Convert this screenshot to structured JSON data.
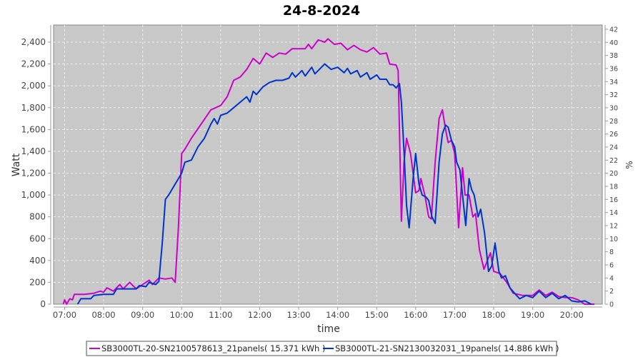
{
  "chart_data": {
    "type": "line",
    "title": "24-8-2024",
    "xlabel": "time",
    "ylabel": "Watt",
    "y2label": "%",
    "xlim": [
      "06:43",
      "20:47"
    ],
    "ylim": [
      0,
      2557
    ],
    "y2lim": [
      0,
      42.65
    ],
    "x_ticks": [
      "07:00",
      "08:00",
      "09:00",
      "10:00",
      "11:00",
      "12:00",
      "13:00",
      "14:00",
      "15:00",
      "16:00",
      "17:00",
      "18:00",
      "19:00",
      "20:00"
    ],
    "y_ticks": [
      "0",
      "200",
      "400",
      "600",
      "800",
      "1,000",
      "1,200",
      "1,400",
      "1,600",
      "1,800",
      "2,000",
      "2,200",
      "2,400"
    ],
    "y2_ticks": [
      "0",
      "2",
      "4",
      "6",
      "8",
      "10",
      "12",
      "14",
      "16",
      "18",
      "20",
      "22",
      "24",
      "26",
      "28",
      "30",
      "32",
      "34",
      "36",
      "38",
      "40",
      "42"
    ],
    "grid": true,
    "legend_placement": "bottom",
    "series": [
      {
        "name": "SB3000TL-20-SN2100578613_21panels( 15.371 kWh )",
        "color": "#cc00cc",
        "points": [
          [
            "06:58",
            0
          ],
          [
            "07:00",
            40
          ],
          [
            "07:03",
            0
          ],
          [
            "07:08",
            50
          ],
          [
            "07:12",
            40
          ],
          [
            "07:15",
            90
          ],
          [
            "07:30",
            90
          ],
          [
            "07:45",
            100
          ],
          [
            "07:55",
            120
          ],
          [
            "08:00",
            110
          ],
          [
            "08:05",
            150
          ],
          [
            "08:15",
            120
          ],
          [
            "08:25",
            180
          ],
          [
            "08:30",
            140
          ],
          [
            "08:40",
            200
          ],
          [
            "08:50",
            140
          ],
          [
            "09:00",
            180
          ],
          [
            "09:10",
            220
          ],
          [
            "09:15",
            180
          ],
          [
            "09:25",
            240
          ],
          [
            "09:35",
            230
          ],
          [
            "09:45",
            240
          ],
          [
            "09:50",
            200
          ],
          [
            "09:55",
            700
          ],
          [
            "10:00",
            1380
          ],
          [
            "10:05",
            1420
          ],
          [
            "10:15",
            1520
          ],
          [
            "10:30",
            1650
          ],
          [
            "10:45",
            1780
          ],
          [
            "11:00",
            1820
          ],
          [
            "11:10",
            1900
          ],
          [
            "11:20",
            2050
          ],
          [
            "11:30",
            2080
          ],
          [
            "11:40",
            2150
          ],
          [
            "11:50",
            2250
          ],
          [
            "12:00",
            2200
          ],
          [
            "12:10",
            2300
          ],
          [
            "12:20",
            2260
          ],
          [
            "12:30",
            2300
          ],
          [
            "12:40",
            2290
          ],
          [
            "12:50",
            2340
          ],
          [
            "13:00",
            2340
          ],
          [
            "13:10",
            2340
          ],
          [
            "13:15",
            2380
          ],
          [
            "13:20",
            2340
          ],
          [
            "13:30",
            2420
          ],
          [
            "13:40",
            2400
          ],
          [
            "13:45",
            2430
          ],
          [
            "13:55",
            2380
          ],
          [
            "14:05",
            2390
          ],
          [
            "14:15",
            2330
          ],
          [
            "14:25",
            2370
          ],
          [
            "14:35",
            2330
          ],
          [
            "14:45",
            2310
          ],
          [
            "14:55",
            2350
          ],
          [
            "15:05",
            2290
          ],
          [
            "15:15",
            2300
          ],
          [
            "15:20",
            2200
          ],
          [
            "15:30",
            2190
          ],
          [
            "15:33",
            2140
          ],
          [
            "15:35",
            1600
          ],
          [
            "15:38",
            760
          ],
          [
            "15:42",
            1300
          ],
          [
            "15:46",
            1520
          ],
          [
            "15:52",
            1380
          ],
          [
            "16:00",
            1020
          ],
          [
            "16:05",
            1040
          ],
          [
            "16:08",
            1150
          ],
          [
            "16:14",
            1000
          ],
          [
            "16:20",
            800
          ],
          [
            "16:24",
            780
          ],
          [
            "16:30",
            1300
          ],
          [
            "16:36",
            1700
          ],
          [
            "16:41",
            1780
          ],
          [
            "16:46",
            1600
          ],
          [
            "16:50",
            1480
          ],
          [
            "16:55",
            1500
          ],
          [
            "17:00",
            1380
          ],
          [
            "17:06",
            700
          ],
          [
            "17:12",
            1250
          ],
          [
            "17:16",
            1000
          ],
          [
            "17:22",
            1000
          ],
          [
            "17:28",
            800
          ],
          [
            "17:32",
            830
          ],
          [
            "17:38",
            500
          ],
          [
            "17:45",
            320
          ],
          [
            "17:55",
            470
          ],
          [
            "18:00",
            300
          ],
          [
            "18:10",
            280
          ],
          [
            "18:20",
            200
          ],
          [
            "18:30",
            100
          ],
          [
            "18:45",
            80
          ],
          [
            "19:00",
            80
          ],
          [
            "19:10",
            130
          ],
          [
            "19:20",
            80
          ],
          [
            "19:30",
            110
          ],
          [
            "19:40",
            70
          ],
          [
            "19:50",
            60
          ],
          [
            "20:00",
            60
          ],
          [
            "20:10",
            40
          ],
          [
            "20:20",
            0
          ],
          [
            "20:35",
            0
          ]
        ]
      },
      {
        "name": "SB3000TL-21-SN2130032031_19panels( 14.886 kWh )",
        "color": "#0033cc",
        "points": [
          [
            "07:20",
            0
          ],
          [
            "07:25",
            50
          ],
          [
            "07:40",
            50
          ],
          [
            "07:45",
            80
          ],
          [
            "08:00",
            90
          ],
          [
            "08:15",
            90
          ],
          [
            "08:20",
            140
          ],
          [
            "08:50",
            140
          ],
          [
            "08:55",
            170
          ],
          [
            "09:05",
            160
          ],
          [
            "09:10",
            200
          ],
          [
            "09:20",
            180
          ],
          [
            "09:25",
            210
          ],
          [
            "09:30",
            550
          ],
          [
            "09:35",
            960
          ],
          [
            "09:40",
            1000
          ],
          [
            "09:50",
            1100
          ],
          [
            "10:00",
            1200
          ],
          [
            "10:05",
            1300
          ],
          [
            "10:15",
            1320
          ],
          [
            "10:25",
            1440
          ],
          [
            "10:35",
            1520
          ],
          [
            "10:45",
            1650
          ],
          [
            "10:50",
            1700
          ],
          [
            "10:55",
            1650
          ],
          [
            "11:00",
            1730
          ],
          [
            "11:10",
            1750
          ],
          [
            "11:20",
            1800
          ],
          [
            "11:30",
            1850
          ],
          [
            "11:40",
            1900
          ],
          [
            "11:45",
            1850
          ],
          [
            "11:50",
            1950
          ],
          [
            "11:55",
            1920
          ],
          [
            "12:05",
            1990
          ],
          [
            "12:15",
            2030
          ],
          [
            "12:25",
            2050
          ],
          [
            "12:35",
            2050
          ],
          [
            "12:45",
            2070
          ],
          [
            "12:50",
            2120
          ],
          [
            "12:55",
            2080
          ],
          [
            "13:05",
            2140
          ],
          [
            "13:10",
            2090
          ],
          [
            "13:20",
            2170
          ],
          [
            "13:25",
            2110
          ],
          [
            "13:30",
            2140
          ],
          [
            "13:40",
            2200
          ],
          [
            "13:50",
            2150
          ],
          [
            "14:00",
            2170
          ],
          [
            "14:10",
            2120
          ],
          [
            "14:15",
            2160
          ],
          [
            "14:20",
            2110
          ],
          [
            "14:30",
            2140
          ],
          [
            "14:35",
            2080
          ],
          [
            "14:45",
            2120
          ],
          [
            "14:50",
            2060
          ],
          [
            "15:00",
            2100
          ],
          [
            "15:05",
            2060
          ],
          [
            "15:15",
            2060
          ],
          [
            "15:20",
            2010
          ],
          [
            "15:25",
            2010
          ],
          [
            "15:30",
            1980
          ],
          [
            "15:35",
            2020
          ],
          [
            "15:38",
            1850
          ],
          [
            "15:42",
            1400
          ],
          [
            "15:46",
            900
          ],
          [
            "15:50",
            700
          ],
          [
            "15:56",
            1150
          ],
          [
            "16:00",
            1380
          ],
          [
            "16:05",
            1100
          ],
          [
            "16:10",
            1000
          ],
          [
            "16:16",
            980
          ],
          [
            "16:20",
            950
          ],
          [
            "16:25",
            800
          ],
          [
            "16:30",
            740
          ],
          [
            "16:36",
            1300
          ],
          [
            "16:41",
            1560
          ],
          [
            "16:46",
            1640
          ],
          [
            "16:50",
            1620
          ],
          [
            "16:55",
            1500
          ],
          [
            "17:00",
            1440
          ],
          [
            "17:03",
            1300
          ],
          [
            "17:08",
            1230
          ],
          [
            "17:12",
            1000
          ],
          [
            "17:17",
            720
          ],
          [
            "17:22",
            1150
          ],
          [
            "17:26",
            1050
          ],
          [
            "17:30",
            1000
          ],
          [
            "17:36",
            800
          ],
          [
            "17:40",
            870
          ],
          [
            "17:46",
            650
          ],
          [
            "17:52",
            300
          ],
          [
            "17:57",
            350
          ],
          [
            "18:02",
            560
          ],
          [
            "18:08",
            300
          ],
          [
            "18:12",
            240
          ],
          [
            "18:18",
            260
          ],
          [
            "18:25",
            150
          ],
          [
            "18:32",
            100
          ],
          [
            "18:40",
            50
          ],
          [
            "18:50",
            80
          ],
          [
            "19:00",
            60
          ],
          [
            "19:10",
            120
          ],
          [
            "19:20",
            60
          ],
          [
            "19:30",
            100
          ],
          [
            "19:40",
            50
          ],
          [
            "19:50",
            80
          ],
          [
            "20:00",
            30
          ],
          [
            "20:10",
            20
          ],
          [
            "20:20",
            30
          ],
          [
            "20:30",
            0
          ]
        ]
      }
    ]
  }
}
